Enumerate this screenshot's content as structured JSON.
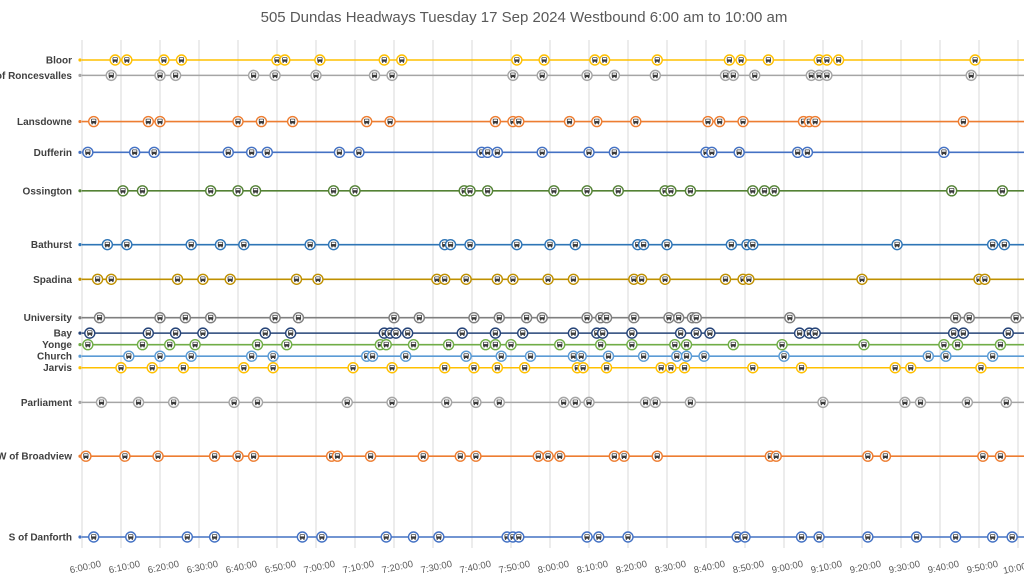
{
  "chart_data": {
    "type": "scatter",
    "title": "505 Dundas Headways Tuesday 17 Sep 2024 Westbound 6:00 am to 10:00 am",
    "x_ticks": [
      "6:00:00",
      "6:10:00",
      "6:20:00",
      "6:30:00",
      "6:40:00",
      "6:50:00",
      "7:00:00",
      "7:10:00",
      "7:20:00",
      "7:30:00",
      "7:40:00",
      "7:50:00",
      "8:00:00",
      "8:10:00",
      "8:20:00",
      "8:30:00",
      "8:40:00",
      "8:50:00",
      "9:00:00",
      "9:10:00",
      "9:20:00",
      "9:30:00",
      "9:40:00",
      "9:50:00",
      "10:00:00"
    ],
    "xlim": [
      "6:00:00",
      "10:00:00"
    ],
    "grid": "vertical",
    "marker": "bus-icon",
    "series": [
      {
        "name": "Bloor",
        "y": 0,
        "color": "#FFC000",
        "times": [
          "6:08:30",
          "6:11:30",
          "6:21:00",
          "6:25:30",
          "6:50:00",
          "6:52:00",
          "7:01:00",
          "7:17:30",
          "7:22:00",
          "7:51:30",
          "7:58:30",
          "8:11:30",
          "8:14:00",
          "8:27:30",
          "8:46:00",
          "8:49:00",
          "8:56:00",
          "9:09:00",
          "9:11:00",
          "9:14:00",
          "9:49:00"
        ]
      },
      {
        "name": "E of Roncesvalles",
        "y": 4,
        "color": "#A5A5A5",
        "times": [
          "6:07:30",
          "6:20:00",
          "6:24:00",
          "6:44:00",
          "6:49:30",
          "7:00:00",
          "7:15:00",
          "7:19:30",
          "7:50:30",
          "7:58:00",
          "8:09:30",
          "8:16:30",
          "8:27:00",
          "8:45:00",
          "8:47:00",
          "8:52:30",
          "9:07:00",
          "9:09:00",
          "9:11:00",
          "9:48:00"
        ]
      },
      {
        "name": "Lansdowne",
        "y": 16,
        "color": "#ED7D31",
        "times": [
          "6:03:00",
          "6:17:00",
          "6:20:00",
          "6:40:00",
          "6:46:00",
          "6:54:00",
          "7:13:00",
          "7:19:00",
          "7:46:00",
          "7:50:30",
          "7:52:00",
          "8:05:00",
          "8:12:00",
          "8:22:00",
          "8:40:30",
          "8:43:30",
          "8:49:30",
          "9:05:00",
          "9:06:30",
          "9:08:00",
          "9:46:00"
        ]
      },
      {
        "name": "Dufferin",
        "y": 24,
        "color": "#4472C4",
        "times": [
          "6:01:30",
          "6:13:30",
          "6:18:30",
          "6:37:30",
          "6:43:30",
          "6:47:30",
          "7:06:00",
          "7:11:00",
          "7:42:30",
          "7:44:00",
          "7:46:30",
          "7:58:00",
          "8:10:00",
          "8:16:30",
          "8:40:00",
          "8:41:30",
          "8:48:30",
          "9:03:30",
          "9:06:00",
          "9:41:00"
        ]
      },
      {
        "name": "Ossington",
        "y": 34,
        "color": "#548235",
        "times": [
          "6:10:30",
          "6:15:30",
          "6:33:00",
          "6:40:00",
          "6:44:30",
          "7:04:30",
          "7:10:00",
          "7:38:00",
          "7:39:30",
          "7:44:00",
          "8:01:00",
          "8:09:30",
          "8:17:30",
          "8:29:30",
          "8:31:00",
          "8:36:00",
          "8:52:00",
          "8:55:00",
          "8:57:30",
          "9:43:00",
          "9:56:00"
        ]
      },
      {
        "name": "Bathurst",
        "y": 48,
        "color": "#2E75B6",
        "times": [
          "6:06:30",
          "6:11:30",
          "6:28:00",
          "6:35:30",
          "6:41:30",
          "6:58:30",
          "7:04:30",
          "7:33:00",
          "7:34:30",
          "7:39:30",
          "7:51:30",
          "8:00:00",
          "8:06:30",
          "8:22:30",
          "8:24:00",
          "8:30:00",
          "8:46:30",
          "8:50:30",
          "8:52:00",
          "9:29:00",
          "9:53:30",
          "9:56:30"
        ]
      },
      {
        "name": "Spadina",
        "y": 57,
        "color": "#BF9000",
        "times": [
          "6:04:00",
          "6:07:30",
          "6:24:30",
          "6:31:00",
          "6:38:00",
          "6:55:00",
          "7:00:30",
          "7:31:00",
          "7:33:00",
          "7:38:30",
          "7:46:30",
          "7:50:30",
          "7:59:30",
          "8:06:00",
          "8:21:30",
          "8:23:30",
          "8:29:30",
          "8:45:00",
          "8:49:30",
          "8:51:00",
          "9:20:00",
          "9:50:00",
          "9:51:30"
        ]
      },
      {
        "name": "University",
        "y": 67,
        "color": "#7F7F7F",
        "times": [
          "6:04:30",
          "6:20:00",
          "6:26:30",
          "6:33:00",
          "6:49:30",
          "6:55:30",
          "7:20:00",
          "7:26:30",
          "7:40:30",
          "7:47:00",
          "7:54:00",
          "7:58:00",
          "8:09:30",
          "8:13:00",
          "8:14:30",
          "8:21:30",
          "8:30:30",
          "8:33:00",
          "8:36:30",
          "8:37:30",
          "9:01:30",
          "9:44:00",
          "9:47:30",
          "9:59:30"
        ]
      },
      {
        "name": "Bay",
        "y": 71,
        "color": "#264478",
        "times": [
          "6:02:00",
          "6:17:00",
          "6:24:00",
          "6:31:00",
          "6:47:00",
          "6:53:30",
          "7:17:30",
          "7:19:00",
          "7:20:30",
          "7:23:30",
          "7:37:30",
          "7:46:00",
          "7:53:00",
          "8:06:00",
          "8:12:00",
          "8:13:30",
          "8:21:00",
          "8:33:30",
          "8:37:30",
          "8:41:00",
          "9:04:00",
          "9:06:30",
          "9:08:00",
          "9:43:30",
          "9:46:00",
          "9:57:30"
        ]
      },
      {
        "name": "Yonge",
        "y": 74,
        "color": "#70AD47",
        "times": [
          "6:01:30",
          "6:15:30",
          "6:22:30",
          "6:29:00",
          "6:45:00",
          "6:52:30",
          "7:16:30",
          "7:18:00",
          "7:25:00",
          "7:34:00",
          "7:43:30",
          "7:46:00",
          "7:50:00",
          "8:02:30",
          "8:13:00",
          "8:21:00",
          "8:32:00",
          "8:35:00",
          "8:47:00",
          "8:59:30",
          "9:20:30",
          "9:41:00",
          "9:44:30",
          "9:55:30"
        ]
      },
      {
        "name": "Church",
        "y": 77,
        "color": "#5B9BD5",
        "times": [
          "6:12:00",
          "6:20:00",
          "6:28:00",
          "6:43:30",
          "6:49:00",
          "7:13:00",
          "7:14:30",
          "7:23:00",
          "7:38:30",
          "7:47:30",
          "7:55:00",
          "8:06:00",
          "8:08:00",
          "8:15:00",
          "8:24:00",
          "8:32:30",
          "8:35:00",
          "8:39:30",
          "9:00:00",
          "9:37:00",
          "9:41:30",
          "9:53:30"
        ]
      },
      {
        "name": "Jarvis",
        "y": 80,
        "color": "#FFC000",
        "times": [
          "6:10:00",
          "6:18:00",
          "6:26:00",
          "6:41:30",
          "6:49:00",
          "7:09:30",
          "7:19:30",
          "7:33:00",
          "7:40:30",
          "7:46:30",
          "7:53:30",
          "8:07:00",
          "8:08:30",
          "8:14:30",
          "8:28:30",
          "8:31:00",
          "8:34:30",
          "8:52:00",
          "9:04:30",
          "9:28:30",
          "9:32:30",
          "9:50:30"
        ]
      },
      {
        "name": "Parliament",
        "y": 89,
        "color": "#A5A5A5",
        "times": [
          "6:05:00",
          "6:14:30",
          "6:23:30",
          "6:39:00",
          "6:45:00",
          "7:08:00",
          "7:19:30",
          "7:33:30",
          "7:41:00",
          "7:47:00",
          "8:03:30",
          "8:06:30",
          "8:10:00",
          "8:24:30",
          "8:27:00",
          "8:36:00",
          "9:10:00",
          "9:31:00",
          "9:35:00",
          "9:47:00",
          "9:57:00"
        ]
      },
      {
        "name": "W of Broadview",
        "y": 103,
        "color": "#ED7D31",
        "times": [
          "6:01:00",
          "6:11:00",
          "6:19:30",
          "6:34:00",
          "6:40:00",
          "6:44:00",
          "7:04:00",
          "7:05:30",
          "7:14:00",
          "7:27:30",
          "7:37:00",
          "7:41:00",
          "7:57:00",
          "7:59:30",
          "8:02:30",
          "8:16:30",
          "8:19:00",
          "8:27:30",
          "8:56:30",
          "8:58:00",
          "9:21:30",
          "9:26:00",
          "9:51:00",
          "9:55:30"
        ]
      },
      {
        "name": "S of Danforth",
        "y": 124,
        "color": "#4472C4",
        "times": [
          "6:03:00",
          "6:12:30",
          "6:27:00",
          "6:34:00",
          "6:56:30",
          "7:01:30",
          "7:18:00",
          "7:25:00",
          "7:31:30",
          "7:49:00",
          "7:50:30",
          "7:52:00",
          "8:09:30",
          "8:12:30",
          "8:20:00",
          "8:48:00",
          "8:50:00",
          "9:04:30",
          "9:09:00",
          "9:21:30",
          "9:34:00",
          "9:44:00",
          "9:53:30",
          "9:58:30"
        ]
      }
    ]
  }
}
